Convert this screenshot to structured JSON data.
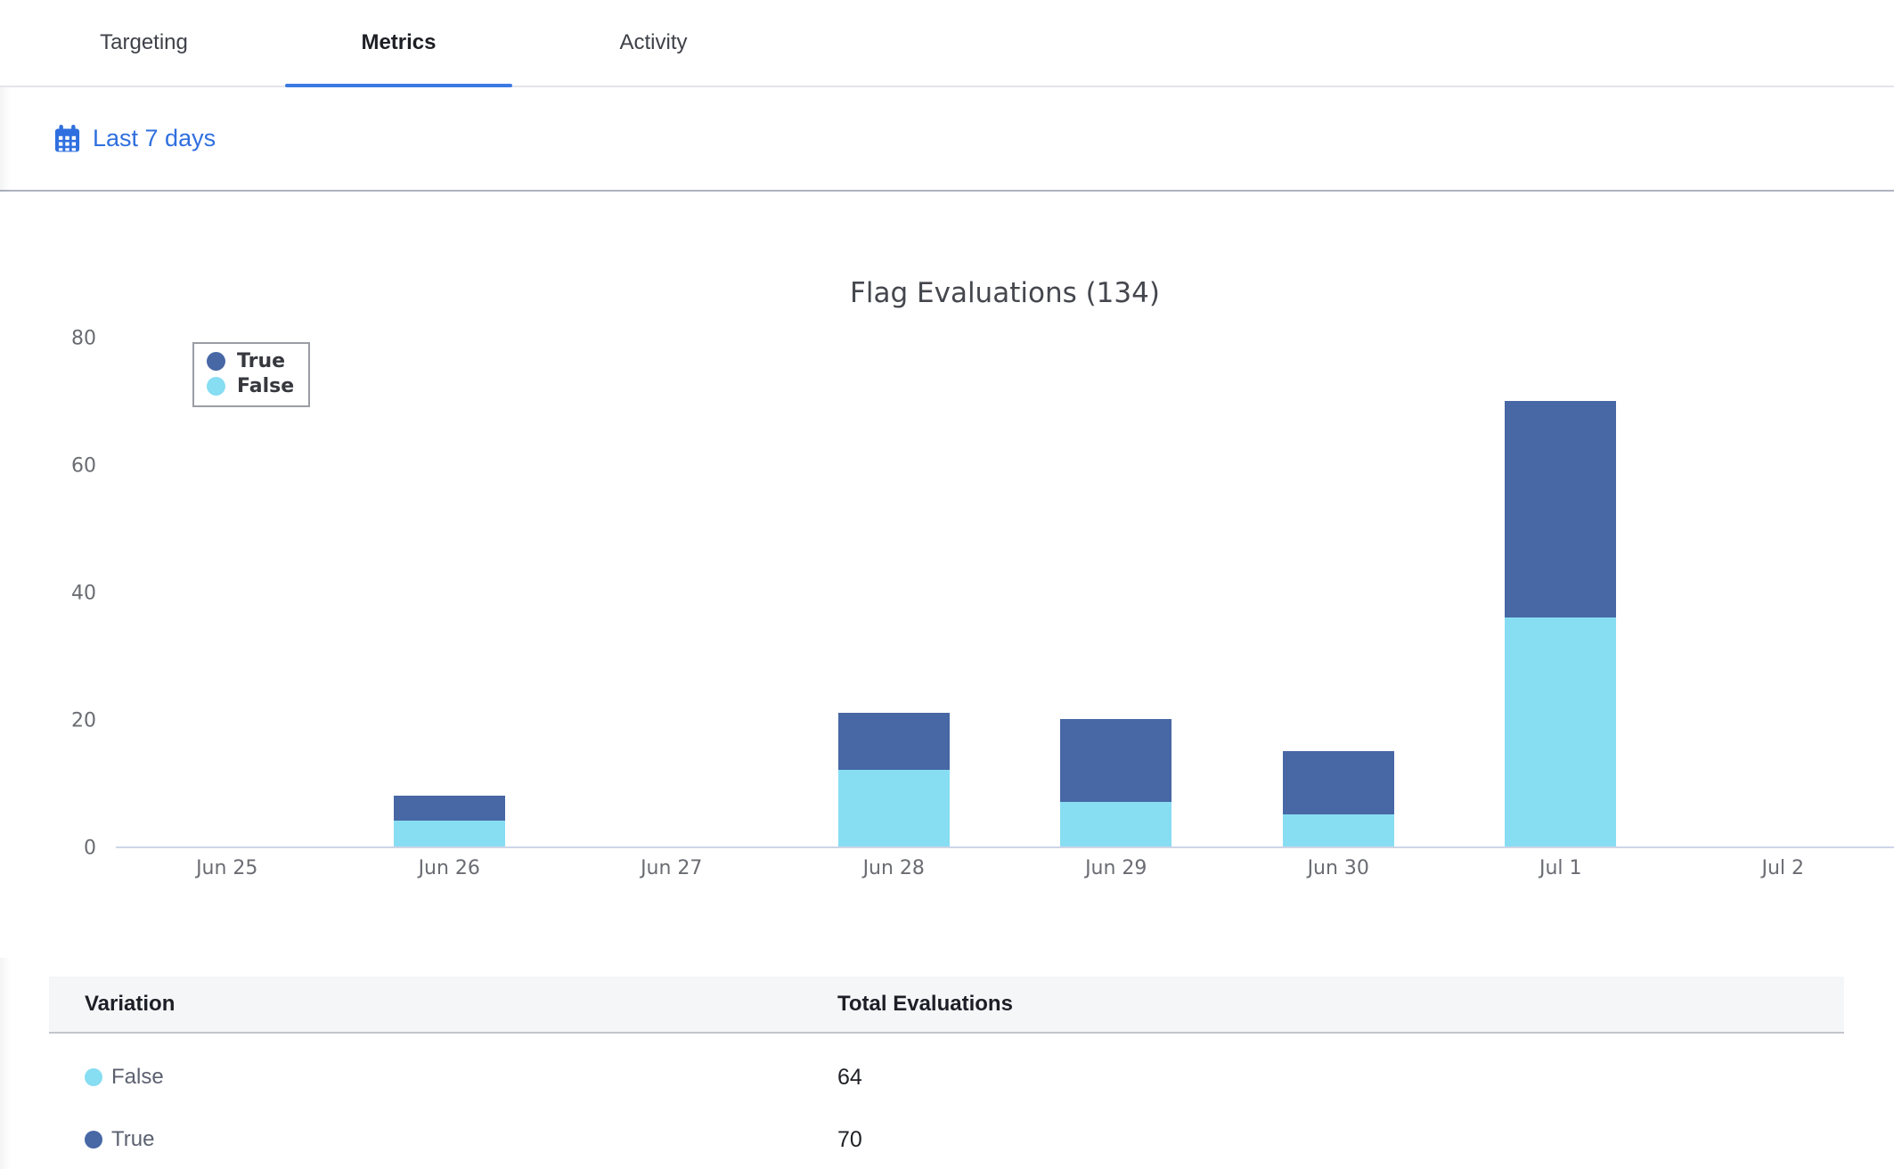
{
  "tabs": [
    {
      "label": "Targeting",
      "active": false
    },
    {
      "label": "Metrics",
      "active": true
    },
    {
      "label": "Activity",
      "active": false
    }
  ],
  "date_filter": {
    "label": "Last 7 days"
  },
  "chart_data": {
    "type": "bar",
    "variant": "stacked",
    "title": "Flag Evaluations (134)",
    "total_evaluations": 134,
    "categories": [
      "Jun 25",
      "Jun 26",
      "Jun 27",
      "Jun 28",
      "Jun 29",
      "Jun 30",
      "Jul 1",
      "Jul 2"
    ],
    "series": [
      {
        "name": "True",
        "color": "#4767A5",
        "values": [
          0,
          4,
          0,
          9,
          13,
          10,
          34,
          0
        ],
        "total": 70
      },
      {
        "name": "False",
        "color": "#87DDF2",
        "values": [
          0,
          4,
          0,
          12,
          7,
          5,
          36,
          0
        ],
        "total": 64
      }
    ],
    "stack_totals": [
      0,
      8,
      0,
      21,
      20,
      15,
      70,
      0
    ],
    "xlabel": "",
    "ylabel": "",
    "ylim": [
      0,
      80
    ],
    "y_ticks": [
      0,
      20,
      40,
      60,
      80
    ],
    "grid": false,
    "legend_position": "top-left"
  },
  "table": {
    "columns": [
      "Variation",
      "Total Evaluations"
    ],
    "rows": [
      {
        "label": "False",
        "color": "#87DDF2",
        "value": "64"
      },
      {
        "label": "True",
        "color": "#4767A5",
        "value": "70"
      }
    ]
  },
  "colors": {
    "accent_blue": "#2F6FDF",
    "tab_underline": "#3B79E3",
    "true_bar": "#4767A5",
    "false_bar": "#87DDF2",
    "axis_line": "#CDD5E7"
  }
}
